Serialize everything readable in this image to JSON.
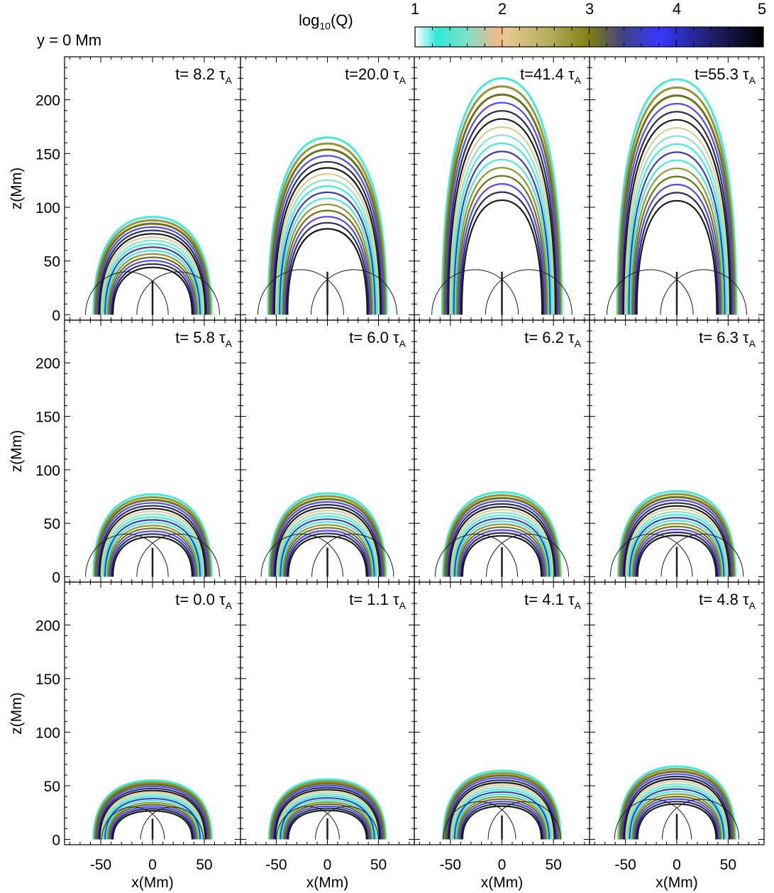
{
  "header": {
    "slice_label": "y = 0 Mm",
    "colorbar": {
      "title_base": "log",
      "title_sub": "10",
      "title_rest": "(Q)",
      "ticks": [
        "1",
        "2",
        "3",
        "4",
        "5"
      ],
      "range": [
        1,
        5
      ],
      "stops": [
        {
          "v": 1.0,
          "c": "#ffffff"
        },
        {
          "v": 1.25,
          "c": "#30e8d8"
        },
        {
          "v": 1.6,
          "c": "#80e0c8"
        },
        {
          "v": 1.95,
          "c": "#f0b888"
        },
        {
          "v": 2.05,
          "c": "#e8c890"
        },
        {
          "v": 2.5,
          "c": "#b8b060"
        },
        {
          "v": 3.0,
          "c": "#808010"
        },
        {
          "v": 3.4,
          "c": "#404088"
        },
        {
          "v": 3.8,
          "c": "#3838ff"
        },
        {
          "v": 4.4,
          "c": "#20206a"
        },
        {
          "v": 5.0,
          "c": "#000000"
        }
      ]
    }
  },
  "axes": {
    "x_label": "x(Mm)",
    "z_label": "z(Mm)",
    "x_ticks": [
      "-50",
      "0",
      "50"
    ],
    "z_ticks": [
      "0",
      "50",
      "100",
      "150",
      "200"
    ],
    "x_range": [
      -85,
      85
    ],
    "z_range": [
      -5,
      240
    ]
  },
  "chart_data": {
    "type": "image-grid",
    "panels": [
      {
        "t": "t= 8.2",
        "top": 91
      },
      {
        "t": "t=20.0",
        "top": 165
      },
      {
        "t": "t=41.4",
        "top": 220
      },
      {
        "t": "t=55.3",
        "top": 219
      },
      {
        "t": "t= 5.8",
        "top": 77
      },
      {
        "t": "t= 6.0",
        "top": 78
      },
      {
        "t": "t= 6.2",
        "top": 79
      },
      {
        "t": "t= 6.3",
        "top": 80
      },
      {
        "t": "t= 0.0",
        "top": 55
      },
      {
        "t": "t= 1.1",
        "top": 56
      },
      {
        "t": "t= 4.1",
        "top": 64
      },
      {
        "t": "t= 4.8",
        "top": 68
      }
    ],
    "time_unit_symbol": "τ",
    "time_unit_sub": "A"
  }
}
